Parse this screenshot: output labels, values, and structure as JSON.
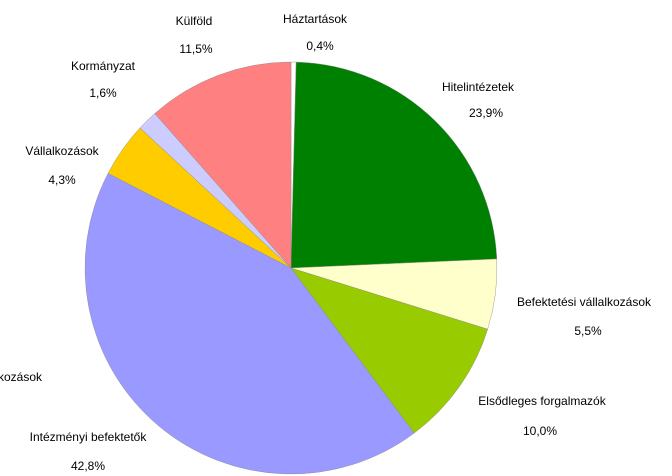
{
  "chart_data": {
    "type": "pie",
    "categories": [
      "Háztartások",
      "Hitelintézetek",
      "Befektetési vállalkozások",
      "Elsődleges forgalmazók",
      "Intézményi befektetők",
      "Vállalkozások",
      "Kormányzat",
      "Külföld"
    ],
    "values": [
      0.4,
      23.9,
      5.5,
      10.0,
      42.8,
      4.3,
      1.6,
      11.5
    ],
    "value_labels": [
      "0,4%",
      "23,9%",
      "5,5%",
      "10,0%",
      "42,8%",
      "4,3%",
      "1,6%",
      "11,5%"
    ],
    "colors": [
      "#ffffff",
      "#008000",
      "#ffffcc",
      "#99cc00",
      "#9999ff",
      "#ffcc00",
      "#ccccff",
      "#ff8080"
    ],
    "annotations": [
      "kozások"
    ]
  }
}
